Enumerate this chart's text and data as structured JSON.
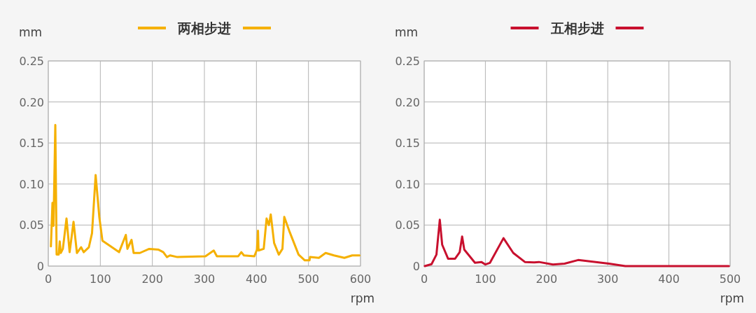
{
  "chart_data": [
    {
      "type": "line",
      "xlabel": "rpm",
      "ylabel": "mm",
      "xlim": [
        0,
        600
      ],
      "ylim": [
        0,
        0.25
      ],
      "xticks": [
        0,
        100,
        200,
        300,
        400,
        500,
        600
      ],
      "yticks": [
        {
          "value": 0,
          "label": "0"
        },
        {
          "value": 0.05,
          "label": "0.05"
        },
        {
          "value": 0.1,
          "label": "0.10"
        },
        {
          "value": 0.15,
          "label": "0.15"
        },
        {
          "value": 0.2,
          "label": "0.20"
        },
        {
          "value": 0.25,
          "label": "0.25"
        }
      ],
      "grid": true,
      "legend": "top",
      "marker": "none",
      "line_style": "solid",
      "series": [
        {
          "name": "两相步进",
          "color": "#f5b000",
          "x": [
            5,
            8,
            10,
            13.5,
            16,
            20,
            22,
            24,
            28,
            35,
            41,
            48.5,
            55,
            63,
            68,
            78,
            84,
            91,
            98,
            104,
            136,
            149,
            152,
            160,
            164,
            176,
            194,
            212,
            221,
            228,
            234,
            248,
            302,
            318,
            324,
            365,
            371,
            376,
            396,
            401,
            403,
            404,
            414,
            419.5,
            424,
            427.5,
            434,
            443,
            450,
            453.5,
            463,
            481,
            493,
            502,
            503,
            520,
            533,
            549,
            569,
            584,
            598
          ],
          "values": [
            0.024,
            0.077,
            0.049,
            0.172,
            0.014,
            0.014,
            0.03,
            0.016,
            0.021,
            0.058,
            0.017,
            0.054,
            0.016,
            0.023,
            0.017,
            0.023,
            0.04,
            0.111,
            0.06,
            0.031,
            0.017,
            0.038,
            0.021,
            0.032,
            0.016,
            0.016,
            0.021,
            0.02,
            0.017,
            0.011,
            0.013,
            0.011,
            0.012,
            0.019,
            0.012,
            0.012,
            0.017,
            0.013,
            0.012,
            0.02,
            0.043,
            0.019,
            0.021,
            0.058,
            0.05,
            0.063,
            0.028,
            0.014,
            0.021,
            0.06,
            0.043,
            0.014,
            0.007,
            0.007,
            0.011,
            0.01,
            0.016,
            0.013,
            0.01,
            0.013,
            0.013
          ]
        }
      ]
    },
    {
      "type": "line",
      "xlabel": "rpm",
      "ylabel": "mm",
      "xlim": [
        0,
        500
      ],
      "ylim": [
        0,
        0.25
      ],
      "xticks": [
        0,
        100,
        200,
        300,
        400,
        500
      ],
      "yticks": [
        {
          "value": 0,
          "label": "0"
        },
        {
          "value": 0.05,
          "label": "0.05"
        },
        {
          "value": 0.1,
          "label": "0.10"
        },
        {
          "value": 0.15,
          "label": "0.15"
        },
        {
          "value": 0.2,
          "label": "0.20"
        },
        {
          "value": 0.25,
          "label": "0.25"
        }
      ],
      "grid": true,
      "legend": "top",
      "marker": "none",
      "line_style": "solid",
      "series": [
        {
          "name": "五相步进",
          "color": "#c8102e",
          "x": [
            1,
            12,
            20,
            25.5,
            29.4,
            39,
            50.5,
            58,
            62,
            65.5,
            83,
            93.4,
            100,
            107.5,
            129.6,
            145.6,
            164.6,
            179.8,
            187.5,
            210.4,
            229.5,
            251.6,
            302,
            328.7,
            498
          ],
          "values": [
            0,
            0.0024,
            0.014,
            0.0565,
            0.026,
            0.009,
            0.009,
            0.017,
            0.036,
            0.02,
            0.004,
            0.005,
            0.002,
            0.004,
            0.034,
            0.016,
            0.005,
            0.0045,
            0.005,
            0.002,
            0.003,
            0.0074,
            0.003,
            0,
            0
          ]
        }
      ]
    }
  ]
}
